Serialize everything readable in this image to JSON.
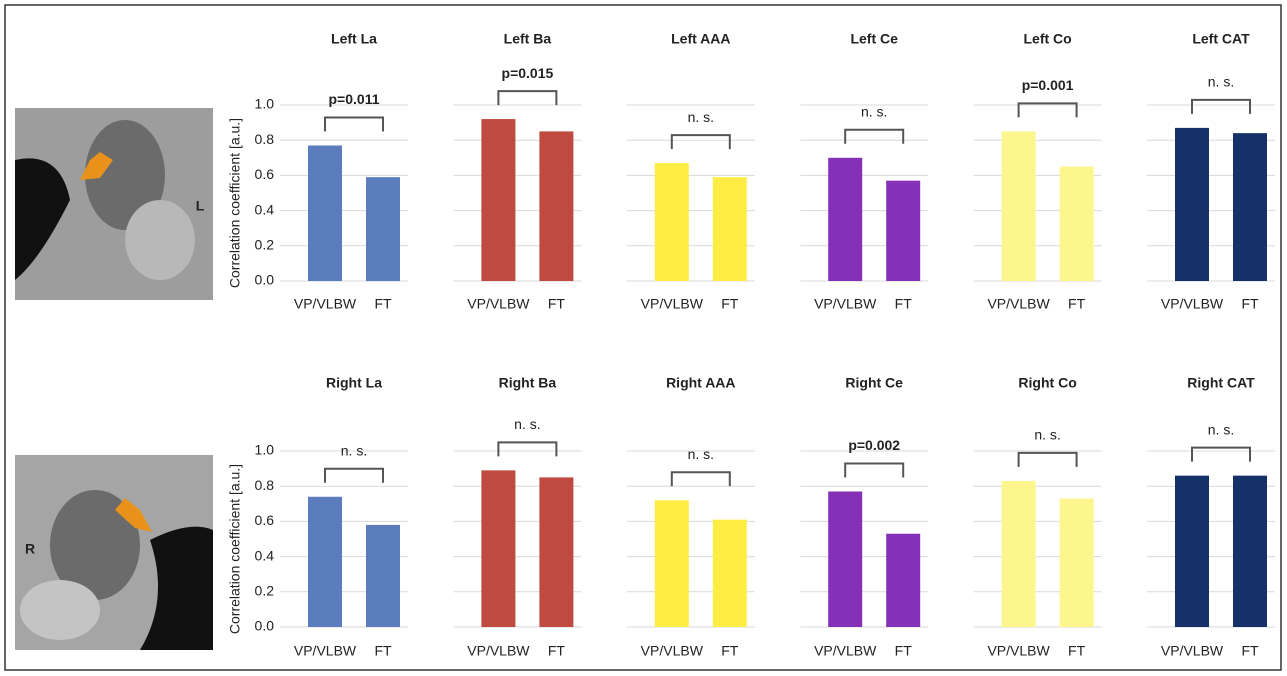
{
  "chart_data": [
    {
      "type": "bar",
      "title": "Left La",
      "categories": [
        "VP/VLBW",
        "FT"
      ],
      "values": [
        0.77,
        0.59
      ],
      "color": "#5b7dbd",
      "annotation": "p=0.011",
      "ylabel": "Correlation coefficient  [a.u.]",
      "ylim": [
        0,
        1.0
      ],
      "yticks": [
        {
          "value": 0,
          "label": "0.0"
        },
        {
          "value": 0.2,
          "label": "0.2"
        },
        {
          "value": 0.4,
          "label": "0.4"
        },
        {
          "value": 0.6,
          "label": "0.6"
        },
        {
          "value": 0.8,
          "label": "0.8"
        },
        {
          "value": 1.0,
          "label": "1.0"
        }
      ],
      "grid": true
    },
    {
      "type": "bar",
      "title": "Left Ba",
      "categories": [
        "VP/VLBW",
        "FT"
      ],
      "values": [
        0.92,
        0.85
      ],
      "color": "#bf4a3f",
      "annotation": "p=0.015"
    },
    {
      "type": "bar",
      "title": "Left AAA",
      "categories": [
        "VP/VLBW",
        "FT"
      ],
      "values": [
        0.67,
        0.59
      ],
      "color": "#fded45",
      "annotation": "n. s."
    },
    {
      "type": "bar",
      "title": "Left Ce",
      "categories": [
        "VP/VLBW",
        "FT"
      ],
      "values": [
        0.7,
        0.57
      ],
      "color": "#8431b8",
      "annotation": "n. s."
    },
    {
      "type": "bar",
      "title": "Left Co",
      "categories": [
        "VP/VLBW",
        "FT"
      ],
      "values": [
        0.85,
        0.65
      ],
      "color": "#fdf68f",
      "annotation": "p=0.001"
    },
    {
      "type": "bar",
      "title": "Left CAT",
      "categories": [
        "VP/VLBW",
        "FT"
      ],
      "values": [
        0.87,
        0.84
      ],
      "color": "#16306a",
      "annotation": "n. s."
    },
    {
      "type": "bar",
      "title": "Right La",
      "categories": [
        "VP/VLBW",
        "FT"
      ],
      "values": [
        0.74,
        0.58
      ],
      "color": "#5b7dbd",
      "annotation": "n. s.",
      "ylabel": "Correlation coefficient  [a.u.]",
      "ylim": [
        0,
        1.0
      ],
      "yticks": [
        {
          "value": 0,
          "label": "0.0"
        },
        {
          "value": 0.2,
          "label": "0.2"
        },
        {
          "value": 0.4,
          "label": "0.4"
        },
        {
          "value": 0.6,
          "label": "0.6"
        },
        {
          "value": 0.8,
          "label": "0.8"
        },
        {
          "value": 1.0,
          "label": "1.0"
        }
      ],
      "grid": true
    },
    {
      "type": "bar",
      "title": "Right Ba",
      "categories": [
        "VP/VLBW",
        "FT"
      ],
      "values": [
        0.89,
        0.85
      ],
      "color": "#bf4a3f",
      "annotation": "n. s."
    },
    {
      "type": "bar",
      "title": "Right AAA",
      "categories": [
        "VP/VLBW",
        "FT"
      ],
      "values": [
        0.72,
        0.61
      ],
      "color": "#fded45",
      "annotation": "n. s."
    },
    {
      "type": "bar",
      "title": "Right Ce",
      "categories": [
        "VP/VLBW",
        "FT"
      ],
      "values": [
        0.77,
        0.53
      ],
      "color": "#8431b8",
      "annotation": "p=0.002"
    },
    {
      "type": "bar",
      "title": "Right Co",
      "categories": [
        "VP/VLBW",
        "FT"
      ],
      "values": [
        0.83,
        0.73
      ],
      "color": "#fdf68f",
      "annotation": "n. s."
    },
    {
      "type": "bar",
      "title": "Right CAT",
      "categories": [
        "VP/VLBW",
        "FT"
      ],
      "values": [
        0.86,
        0.86
      ],
      "color": "#16306a",
      "annotation": "n. s."
    }
  ],
  "images": [
    {
      "label": "L"
    },
    {
      "label": "R"
    }
  ]
}
